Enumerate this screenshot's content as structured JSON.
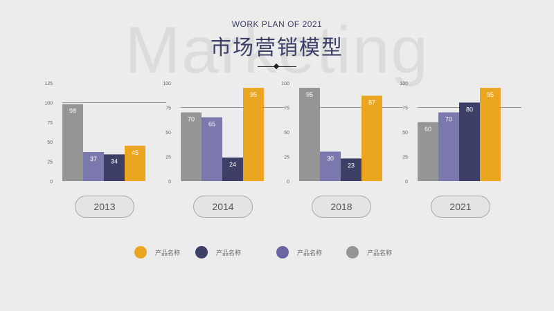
{
  "header": {
    "background_word": "Marketing",
    "subtitle": "WORK PLAN OF 2021",
    "title": "市场营销模型"
  },
  "colors": {
    "gray": "#959595",
    "lavender": "#7b78ad",
    "navy": "#3d3f66",
    "orange": "#eaa521"
  },
  "chart_data": [
    {
      "type": "bar",
      "category": "2013",
      "ylim": [
        0,
        125
      ],
      "yticks": [
        "0",
        "25",
        "50",
        "75",
        "100",
        "125"
      ],
      "gridline": 100,
      "values": [
        98,
        37,
        34,
        45
      ],
      "labels": [
        "98",
        "37",
        "34",
        "45"
      ]
    },
    {
      "type": "bar",
      "category": "2014",
      "ylim": [
        0,
        100
      ],
      "yticks": [
        "0",
        "25",
        "50",
        "75",
        "100"
      ],
      "gridline": 75,
      "values": [
        70,
        65,
        24,
        95
      ],
      "labels": [
        "70",
        "65",
        "24",
        "95"
      ]
    },
    {
      "type": "bar",
      "category": "2018",
      "ylim": [
        0,
        100
      ],
      "yticks": [
        "0",
        "25",
        "50",
        "75",
        "100"
      ],
      "gridline": 75,
      "values": [
        95,
        30,
        23,
        87
      ],
      "labels": [
        "95",
        "30",
        "23",
        "87"
      ]
    },
    {
      "type": "bar",
      "category": "2021",
      "ylim": [
        0,
        100
      ],
      "yticks": [
        "0",
        "25",
        "50",
        "75",
        "100"
      ],
      "gridline": 75,
      "values": [
        60,
        70,
        80,
        95
      ],
      "labels": [
        "60",
        "70",
        "80",
        "95"
      ]
    }
  ],
  "series_colors": [
    "#959595",
    "#7b78ad",
    "#3d3f66",
    "#eaa521"
  ],
  "legend": [
    {
      "label": "产品名称",
      "color": "#eaa521"
    },
    {
      "label": "产品名称",
      "color": "#3d3f66"
    },
    {
      "label": "产品名称",
      "color": "#6a66a3"
    },
    {
      "label": "产品名称",
      "color": "#959595"
    }
  ]
}
